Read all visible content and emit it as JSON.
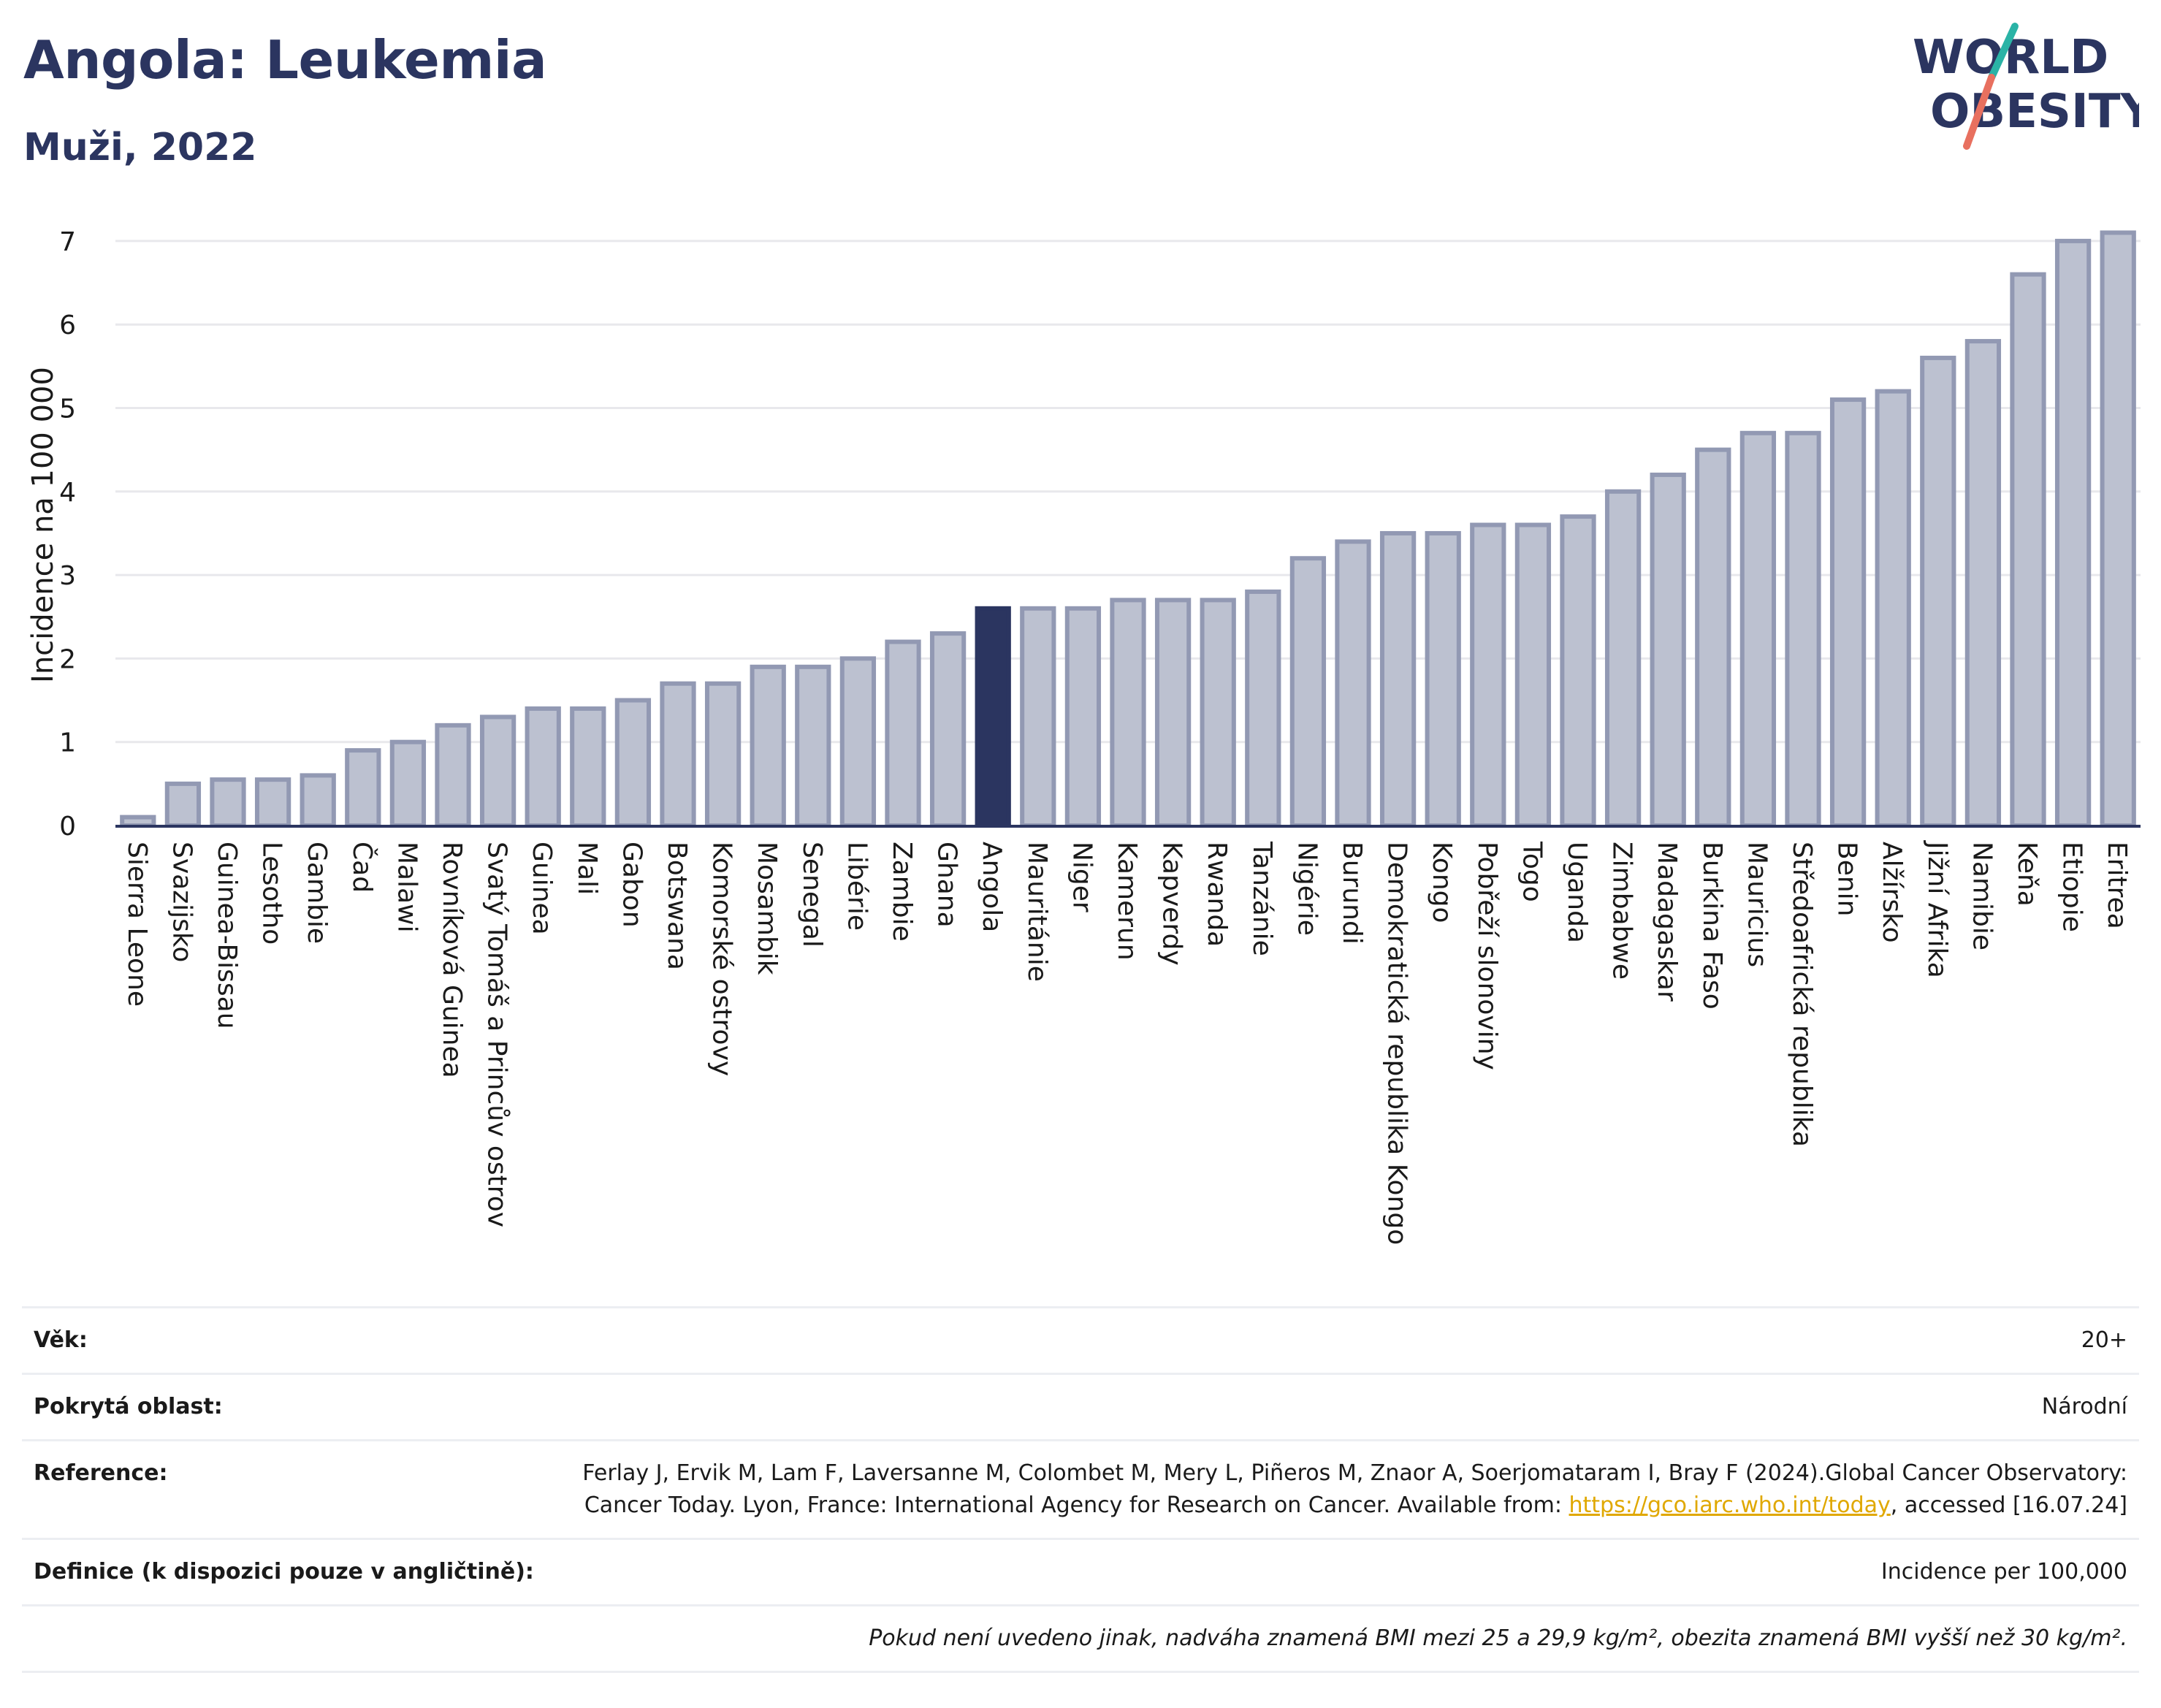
{
  "header": {
    "title": "Angola: Leukemia",
    "subtitle": "Muži, 2022"
  },
  "logo": {
    "line1": "WORLD",
    "line2": "OBESITY"
  },
  "colors": {
    "highlight": "#2b3560",
    "bar": "#bcc1d0",
    "bar_border": "#9299b3",
    "axis": "#2b3560",
    "grid": "#e8e8ec"
  },
  "chart_data": {
    "type": "bar",
    "ylabel": "Incidence na 100 000",
    "xlabel": "",
    "ylim": [
      0,
      7.3
    ],
    "yticks": [
      0,
      1,
      2,
      3,
      4,
      5,
      6,
      7
    ],
    "grid": true,
    "highlight": "Angola",
    "categories": [
      "Sierra Leone",
      "Svazijsko",
      "Guinea-Bissau",
      "Lesotho",
      "Gambie",
      "Čad",
      "Malawi",
      "Rovníková Guinea",
      "Svatý Tomáš a Princův ostrov",
      "Guinea",
      "Mali",
      "Gabon",
      "Botswana",
      "Komorské ostrovy",
      "Mosambik",
      "Senegal",
      "Libérie",
      "Zambie",
      "Ghana",
      "Angola",
      "Mauritánie",
      "Niger",
      "Kamerun",
      "Kapverdy",
      "Rwanda",
      "Tanzánie",
      "Nigérie",
      "Burundi",
      "Demokratická republika Kongo",
      "Kongo",
      "Pobřeží slonoviny",
      "Togo",
      "Uganda",
      "Zimbabwe",
      "Madagaskar",
      "Burkina Faso",
      "Mauricius",
      "Středoafrická republika",
      "Benin",
      "Alžírsko",
      "Jižní Afrika",
      "Namibie",
      "Keňa",
      "Etiopie",
      "Eritrea"
    ],
    "values": [
      0.1,
      0.5,
      0.55,
      0.55,
      0.6,
      0.9,
      1.0,
      1.2,
      1.3,
      1.4,
      1.4,
      1.5,
      1.7,
      1.7,
      1.9,
      1.9,
      2.0,
      2.2,
      2.3,
      2.6,
      2.6,
      2.6,
      2.7,
      2.7,
      2.7,
      2.8,
      3.2,
      3.4,
      3.5,
      3.5,
      3.6,
      3.6,
      3.7,
      4.0,
      4.2,
      4.5,
      4.7,
      4.7,
      5.1,
      5.2,
      5.6,
      5.8,
      6.6,
      7.0,
      7.1
    ]
  },
  "info": {
    "age_label": "Věk:",
    "age_value": "20+",
    "area_label": "Pokrytá oblast:",
    "area_value": "Národní",
    "reference_label": "Reference:",
    "reference_text": "Ferlay J, Ervik M, Lam F, Laversanne M, Colombet M, Mery L, Piñeros M, Znaor A, Soerjomataram I, Bray F (2024).Global Cancer Observatory: Cancer Today. Lyon, France: International Agency for Research on Cancer. Available from:",
    "reference_link": "https://gco.iarc.who.int/today",
    "reference_tail": ", accessed [16.07.24]",
    "definition_label": "Definice (k dispozici pouze v angličtině):",
    "definition_value": "Incidence per 100,000",
    "footnote": "Pokud není uvedeno jinak, nadváha znamená BMI mezi 25 a 29,9 kg/m², obezita znamená BMI vyšší než 30 kg/m²."
  }
}
